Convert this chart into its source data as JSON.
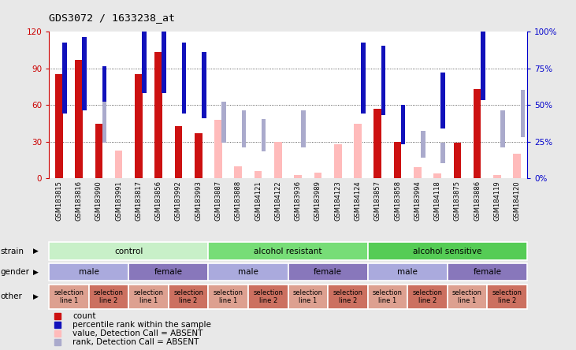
{
  "title": "GDS3072 / 1633238_at",
  "samples": [
    "GSM183815",
    "GSM183816",
    "GSM183990",
    "GSM183991",
    "GSM183817",
    "GSM183856",
    "GSM183992",
    "GSM183993",
    "GSM183887",
    "GSM183888",
    "GSM184121",
    "GSM184122",
    "GSM183936",
    "GSM183989",
    "GSM184123",
    "GSM184124",
    "GSM183857",
    "GSM183858",
    "GSM183994",
    "GSM184118",
    "GSM183875",
    "GSM183886",
    "GSM184119",
    "GSM184120"
  ],
  "count_values": [
    85,
    97,
    45,
    0,
    85,
    103,
    43,
    37,
    0,
    0,
    0,
    0,
    0,
    0,
    0,
    0,
    57,
    30,
    0,
    0,
    29,
    73,
    0,
    0
  ],
  "rank_values": [
    48,
    50,
    40,
    0,
    62,
    62,
    48,
    45,
    0,
    0,
    0,
    0,
    0,
    0,
    0,
    48,
    47,
    27,
    0,
    38,
    0,
    57,
    0,
    0
  ],
  "absent_count_values": [
    0,
    0,
    0,
    23,
    0,
    0,
    0,
    0,
    48,
    10,
    6,
    30,
    3,
    5,
    28,
    45,
    0,
    0,
    9,
    4,
    0,
    0,
    3,
    20
  ],
  "absent_rank_values": [
    0,
    0,
    28,
    0,
    0,
    0,
    0,
    0,
    28,
    25,
    22,
    0,
    25,
    0,
    0,
    0,
    0,
    0,
    18,
    14,
    0,
    0,
    25,
    32
  ],
  "ylim_left": [
    0,
    120
  ],
  "ylim_right": [
    0,
    100
  ],
  "yticks_left": [
    0,
    30,
    60,
    90,
    120
  ],
  "yticks_right": [
    0,
    25,
    50,
    75,
    100
  ],
  "ytick_labels_left": [
    "0",
    "30",
    "60",
    "90",
    "120"
  ],
  "ytick_labels_right": [
    "0%",
    "25%",
    "50%",
    "75%",
    "100%"
  ],
  "strain_groups": [
    {
      "label": "control",
      "start": 0,
      "end": 8,
      "color": "#c8f0c8"
    },
    {
      "label": "alcohol resistant",
      "start": 8,
      "end": 16,
      "color": "#77dd77"
    },
    {
      "label": "alcohol sensitive",
      "start": 16,
      "end": 24,
      "color": "#55cc55"
    }
  ],
  "gender_groups": [
    {
      "label": "male",
      "start": 0,
      "end": 4,
      "color": "#aaaadd"
    },
    {
      "label": "female",
      "start": 4,
      "end": 8,
      "color": "#8877bb"
    },
    {
      "label": "male",
      "start": 8,
      "end": 12,
      "color": "#aaaadd"
    },
    {
      "label": "female",
      "start": 12,
      "end": 16,
      "color": "#8877bb"
    },
    {
      "label": "male",
      "start": 16,
      "end": 20,
      "color": "#aaaadd"
    },
    {
      "label": "female",
      "start": 20,
      "end": 24,
      "color": "#8877bb"
    }
  ],
  "other_groups": [
    {
      "label": "selection\nline 1",
      "start": 0,
      "end": 2,
      "color": "#dda090"
    },
    {
      "label": "selection\nline 2",
      "start": 2,
      "end": 4,
      "color": "#cc7060"
    },
    {
      "label": "selection\nline 1",
      "start": 4,
      "end": 6,
      "color": "#dda090"
    },
    {
      "label": "selection\nline 2",
      "start": 6,
      "end": 8,
      "color": "#cc7060"
    },
    {
      "label": "selection\nline 1",
      "start": 8,
      "end": 10,
      "color": "#dda090"
    },
    {
      "label": "selection\nline 2",
      "start": 10,
      "end": 12,
      "color": "#cc7060"
    },
    {
      "label": "selection\nline 1",
      "start": 12,
      "end": 14,
      "color": "#dda090"
    },
    {
      "label": "selection\nline 2",
      "start": 14,
      "end": 16,
      "color": "#cc7060"
    },
    {
      "label": "selection\nline 1",
      "start": 16,
      "end": 18,
      "color": "#dda090"
    },
    {
      "label": "selection\nline 2",
      "start": 18,
      "end": 20,
      "color": "#cc7060"
    },
    {
      "label": "selection\nline 1",
      "start": 20,
      "end": 22,
      "color": "#dda090"
    },
    {
      "label": "selection\nline 2",
      "start": 22,
      "end": 24,
      "color": "#cc7060"
    }
  ],
  "bar_color_present": "#cc1111",
  "bar_color_absent": "#ffbbbb",
  "rank_color_present": "#1111bb",
  "rank_color_absent": "#aaaacc",
  "bg_color": "#e8e8e8",
  "plot_bg": "#ffffff",
  "tick_label_color_left": "#cc0000",
  "tick_label_color_right": "#0000cc",
  "grid_color": "#333333",
  "label_row_labels": [
    "strain",
    "gender",
    "other"
  ]
}
